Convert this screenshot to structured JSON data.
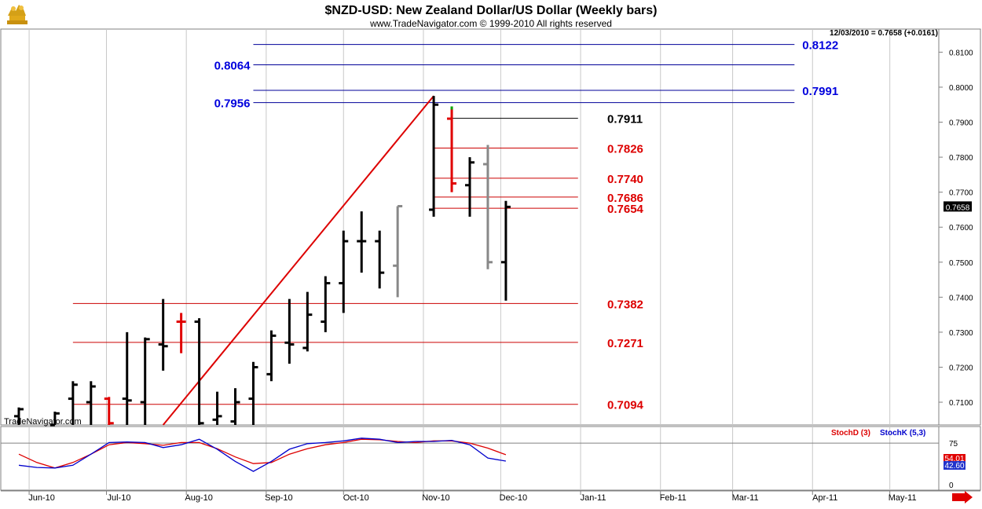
{
  "header": {
    "title": "$NZD-USD:  New Zealand Dollar/US Dollar  (Weekly bars)",
    "copyright": "www.TradeNavigator.com © 1999-2010 All rights reserved",
    "status": "12/03/2010 = 0.7658 (+0.0161)",
    "watermark": "TradeNavigator.com"
  },
  "chart_data": [
    {
      "type": "bar",
      "subtype": "ohlc",
      "title": "$NZD-USD:  New Zealand Dollar/US Dollar  (Weekly bars)",
      "x_axis": {
        "type": "date",
        "tick_labels": [
          "Jun-10",
          "Jul-10",
          "Aug-10",
          "Sep-10",
          "Oct-10",
          "Nov-10",
          "Dec-10",
          "Jan-11",
          "Feb-11",
          "Mar-11",
          "Apr-11",
          "May-11"
        ],
        "range": [
          "2010-05-21",
          "2011-05-20"
        ]
      },
      "y_axis": {
        "ticks": [
          "0.7100",
          "0.7200",
          "0.7300",
          "0.7400",
          "0.7500",
          "0.7600",
          "0.7700",
          "0.7800",
          "0.7900",
          "0.8000",
          "0.8100"
        ],
        "range": [
          0.7035,
          0.8166
        ],
        "position": "right"
      },
      "last_price": "0.7658",
      "bars": [
        {
          "date": "2010-05-28",
          "open": 0.706,
          "high": 0.7085,
          "low": 0.7035,
          "close": 0.708,
          "color": "black"
        },
        {
          "date": "2010-06-11",
          "open": 0.7035,
          "high": 0.7073,
          "low": 0.7035,
          "close": 0.7068,
          "color": "black"
        },
        {
          "date": "2010-06-18",
          "open": 0.711,
          "high": 0.716,
          "low": 0.7035,
          "close": 0.715,
          "color": "black"
        },
        {
          "date": "2010-06-25",
          "open": 0.71,
          "high": 0.716,
          "low": 0.7035,
          "close": 0.7145,
          "color": "black"
        },
        {
          "date": "2010-07-02",
          "open": 0.711,
          "high": 0.7115,
          "low": 0.7035,
          "close": 0.704,
          "color": "red"
        },
        {
          "date": "2010-07-09",
          "open": 0.711,
          "high": 0.73,
          "low": 0.7035,
          "close": 0.7105,
          "color": "black"
        },
        {
          "date": "2010-07-16",
          "open": 0.71,
          "high": 0.7285,
          "low": 0.7035,
          "close": 0.728,
          "color": "black"
        },
        {
          "date": "2010-07-23",
          "open": 0.7265,
          "high": 0.7395,
          "low": 0.719,
          "close": 0.726,
          "color": "black"
        },
        {
          "date": "2010-07-30",
          "open": 0.733,
          "high": 0.7355,
          "low": 0.724,
          "close": 0.733,
          "color": "red"
        },
        {
          "date": "2010-08-06",
          "open": 0.733,
          "high": 0.734,
          "low": 0.7035,
          "close": 0.704,
          "color": "black"
        },
        {
          "date": "2010-08-13",
          "open": 0.705,
          "high": 0.713,
          "low": 0.7035,
          "close": 0.706,
          "color": "black"
        },
        {
          "date": "2010-08-20",
          "open": 0.7045,
          "high": 0.714,
          "low": 0.7035,
          "close": 0.71,
          "color": "black"
        },
        {
          "date": "2010-08-27",
          "open": 0.711,
          "high": 0.7215,
          "low": 0.7035,
          "close": 0.72,
          "color": "black"
        },
        {
          "date": "2010-09-03",
          "open": 0.718,
          "high": 0.7305,
          "low": 0.716,
          "close": 0.729,
          "color": "black"
        },
        {
          "date": "2010-09-10",
          "open": 0.727,
          "high": 0.7395,
          "low": 0.721,
          "close": 0.7265,
          "color": "black"
        },
        {
          "date": "2010-09-17",
          "open": 0.7255,
          "high": 0.7415,
          "low": 0.7245,
          "close": 0.735,
          "color": "black"
        },
        {
          "date": "2010-09-24",
          "open": 0.733,
          "high": 0.746,
          "low": 0.73,
          "close": 0.744,
          "color": "black"
        },
        {
          "date": "2010-10-01",
          "open": 0.744,
          "high": 0.759,
          "low": 0.7355,
          "close": 0.756,
          "color": "black"
        },
        {
          "date": "2010-10-08",
          "open": 0.756,
          "high": 0.7645,
          "low": 0.747,
          "close": 0.756,
          "color": "black"
        },
        {
          "date": "2010-10-15",
          "open": 0.756,
          "high": 0.759,
          "low": 0.7425,
          "close": 0.747,
          "color": "black"
        },
        {
          "date": "2010-10-22",
          "open": 0.749,
          "high": 0.766,
          "low": 0.74,
          "close": 0.766,
          "color": "gray"
        },
        {
          "date": "2010-11-05",
          "open": 0.765,
          "high": 0.7975,
          "low": 0.763,
          "close": 0.795,
          "color": "black"
        },
        {
          "date": "2010-11-12",
          "open": 0.791,
          "high": 0.7945,
          "low": 0.77,
          "close": 0.7725,
          "color": "red"
        },
        {
          "date": "2010-11-19",
          "open": 0.772,
          "high": 0.78,
          "low": 0.763,
          "close": 0.7785,
          "color": "black"
        },
        {
          "date": "2010-11-26",
          "open": 0.778,
          "high": 0.7835,
          "low": 0.748,
          "close": 0.75,
          "color": "gray"
        },
        {
          "date": "2010-12-03",
          "open": 0.75,
          "high": 0.7675,
          "low": 0.739,
          "close": 0.7658,
          "color": "black"
        }
      ],
      "trend_line": {
        "from": {
          "date": "2010-07-23",
          "price": 0.7035
        },
        "to": {
          "date": "2010-11-05",
          "price": 0.7975
        },
        "color": "#dd0000"
      },
      "fib_levels": [
        {
          "label": "0.8122",
          "price": 0.8122,
          "side": "right",
          "label_color": "#0000dd",
          "line_color": "#000099",
          "from": "2010-08-27",
          "to": "2011-03-25"
        },
        {
          "label": "0.8064",
          "price": 0.8064,
          "side": "left",
          "label_color": "#0000dd",
          "line_color": "#000099",
          "from": "2010-08-27",
          "to": "2011-03-25"
        },
        {
          "label": "0.7991",
          "price": 0.7991,
          "side": "right",
          "label_color": "#0000dd",
          "line_color": "#000099",
          "from": "2010-08-27",
          "to": "2011-03-25"
        },
        {
          "label": "0.7956",
          "price": 0.7956,
          "side": "left",
          "label_color": "#0000dd",
          "line_color": "#000099",
          "from": "2010-08-27",
          "to": "2011-03-25"
        },
        {
          "label": "0.7911",
          "price": 0.7911,
          "side": "right",
          "label_color": "#000000",
          "line_color": "#000000",
          "from": "2010-11-12",
          "to": "2010-12-31"
        },
        {
          "label": "0.7826",
          "price": 0.7826,
          "side": "right",
          "label_color": "#dd0000",
          "line_color": "#cc0000",
          "from": "2010-11-05",
          "to": "2010-12-31"
        },
        {
          "label": "0.7740",
          "price": 0.774,
          "side": "right",
          "label_color": "#dd0000",
          "line_color": "#cc0000",
          "from": "2010-11-05",
          "to": "2010-12-31"
        },
        {
          "label": "0.7686",
          "price": 0.7686,
          "side": "right",
          "label_color": "#dd0000",
          "line_color": "#cc0000",
          "from": "2010-11-05",
          "to": "2010-12-31"
        },
        {
          "label": "0.7654",
          "price": 0.7654,
          "side": "right",
          "label_color": "#dd0000",
          "line_color": "#cc0000",
          "from": "2010-11-05",
          "to": "2010-12-31"
        },
        {
          "label": "0.7382",
          "price": 0.7382,
          "side": "right",
          "label_color": "#dd0000",
          "line_color": "#cc0000",
          "from": "2010-06-18",
          "to": "2010-12-31"
        },
        {
          "label": "0.7271",
          "price": 0.7271,
          "side": "right",
          "label_color": "#dd0000",
          "line_color": "#cc0000",
          "from": "2010-06-18",
          "to": "2010-12-31"
        },
        {
          "label": "0.7094",
          "price": 0.7094,
          "side": "right",
          "label_color": "#dd0000",
          "line_color": "#cc0000",
          "from": "2010-06-18",
          "to": "2010-12-31"
        }
      ]
    },
    {
      "type": "line",
      "y_axis": {
        "ticks": [
          "0",
          "75"
        ],
        "range": [
          -10,
          105
        ]
      },
      "reference_lines": [
        75
      ],
      "last_values": [
        "54.01",
        "42.60"
      ],
      "legend": [
        "StochD (3)",
        "StochK (5,3)"
      ],
      "series": [
        {
          "name": "StochD (3)",
          "color": "#dd0000",
          "points": [
            {
              "date": "2010-05-28",
              "value": 55
            },
            {
              "date": "2010-06-04",
              "value": 40
            },
            {
              "date": "2010-06-11",
              "value": 30
            },
            {
              "date": "2010-06-18",
              "value": 40
            },
            {
              "date": "2010-06-25",
              "value": 55
            },
            {
              "date": "2010-07-02",
              "value": 72
            },
            {
              "date": "2010-07-09",
              "value": 76
            },
            {
              "date": "2010-07-16",
              "value": 74
            },
            {
              "date": "2010-07-23",
              "value": 71
            },
            {
              "date": "2010-07-30",
              "value": 76
            },
            {
              "date": "2010-08-06",
              "value": 76
            },
            {
              "date": "2010-08-13",
              "value": 65
            },
            {
              "date": "2010-08-20",
              "value": 50
            },
            {
              "date": "2010-08-27",
              "value": 38
            },
            {
              "date": "2010-09-03",
              "value": 40
            },
            {
              "date": "2010-09-10",
              "value": 55
            },
            {
              "date": "2010-09-17",
              "value": 65
            },
            {
              "date": "2010-09-24",
              "value": 72
            },
            {
              "date": "2010-10-01",
              "value": 76
            },
            {
              "date": "2010-10-08",
              "value": 82
            },
            {
              "date": "2010-10-15",
              "value": 81
            },
            {
              "date": "2010-10-22",
              "value": 78
            },
            {
              "date": "2010-10-29",
              "value": 76
            },
            {
              "date": "2010-11-05",
              "value": 79
            },
            {
              "date": "2010-11-12",
              "value": 79
            },
            {
              "date": "2010-11-19",
              "value": 75
            },
            {
              "date": "2010-11-26",
              "value": 66
            },
            {
              "date": "2010-12-03",
              "value": 54.01
            }
          ]
        },
        {
          "name": "StochK (5,3)",
          "color": "#0000cc",
          "points": [
            {
              "date": "2010-05-28",
              "value": 35
            },
            {
              "date": "2010-06-04",
              "value": 31
            },
            {
              "date": "2010-06-11",
              "value": 30
            },
            {
              "date": "2010-06-18",
              "value": 35
            },
            {
              "date": "2010-06-25",
              "value": 55
            },
            {
              "date": "2010-07-02",
              "value": 76
            },
            {
              "date": "2010-07-09",
              "value": 77
            },
            {
              "date": "2010-07-16",
              "value": 76
            },
            {
              "date": "2010-07-23",
              "value": 67
            },
            {
              "date": "2010-07-30",
              "value": 72
            },
            {
              "date": "2010-08-06",
              "value": 82
            },
            {
              "date": "2010-08-13",
              "value": 64
            },
            {
              "date": "2010-08-20",
              "value": 42
            },
            {
              "date": "2010-08-27",
              "value": 24
            },
            {
              "date": "2010-09-03",
              "value": 42
            },
            {
              "date": "2010-09-10",
              "value": 64
            },
            {
              "date": "2010-09-17",
              "value": 74
            },
            {
              "date": "2010-09-24",
              "value": 76
            },
            {
              "date": "2010-10-01",
              "value": 79
            },
            {
              "date": "2010-10-08",
              "value": 84
            },
            {
              "date": "2010-10-15",
              "value": 82
            },
            {
              "date": "2010-10-22",
              "value": 76
            },
            {
              "date": "2010-10-29",
              "value": 78
            },
            {
              "date": "2010-11-05",
              "value": 78
            },
            {
              "date": "2010-11-12",
              "value": 80
            },
            {
              "date": "2010-11-19",
              "value": 72
            },
            {
              "date": "2010-11-26",
              "value": 48
            },
            {
              "date": "2010-12-03",
              "value": 42.6
            }
          ]
        }
      ]
    }
  ],
  "colors": {
    "grid": "#c8c8c8",
    "bar_black": "#000000",
    "bar_red": "#e00000",
    "bar_gray": "#888888",
    "fib_blue": "#0000dd",
    "fib_red": "#dd0000",
    "last_price_bg": "#000000",
    "stoch_d_bg": "#e00000",
    "stoch_k_bg": "#2233cc",
    "logo_gold": "#d4a017",
    "scroll_arrow": "#e00000",
    "green_tick": "#00aa00"
  },
  "icons": {
    "logo": "gold-bull-bear-logo-icon",
    "scroll": "red-right-arrow-icon"
  }
}
